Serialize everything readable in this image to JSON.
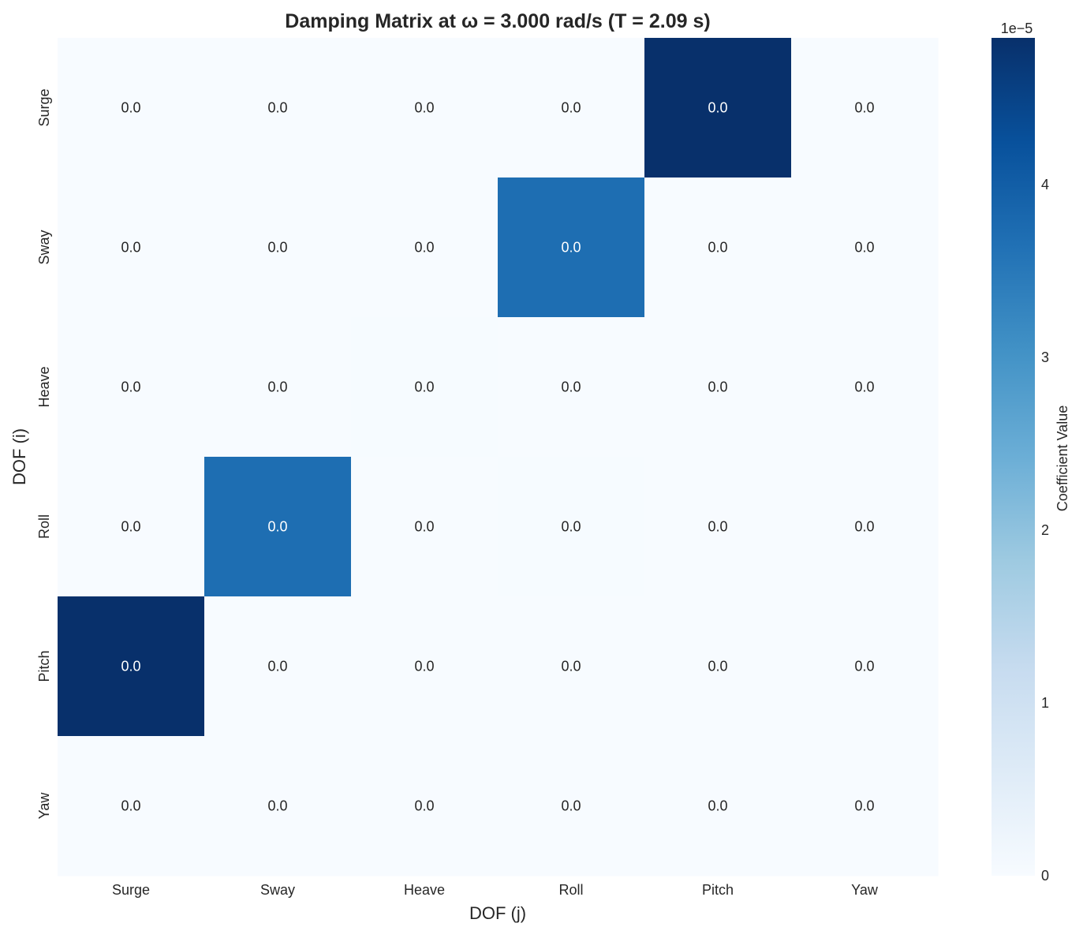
{
  "chart_data": {
    "type": "heatmap",
    "title": "Damping Matrix at ω = 3.000 rad/s (T = 2.09 s)",
    "xlabel": "DOF (j)",
    "ylabel": "DOF (i)",
    "x_categories": [
      "Surge",
      "Sway",
      "Heave",
      "Roll",
      "Pitch",
      "Yaw"
    ],
    "y_categories": [
      "Surge",
      "Sway",
      "Heave",
      "Roll",
      "Pitch",
      "Yaw"
    ],
    "values": [
      [
        0,
        0,
        0,
        0,
        4.85e-05,
        0
      ],
      [
        0,
        0,
        0,
        3.7e-05,
        0,
        0
      ],
      [
        0,
        0,
        1.5e-07,
        0,
        0,
        0
      ],
      [
        0,
        3.7e-05,
        0,
        1.5e-07,
        0,
        0
      ],
      [
        4.85e-05,
        0,
        0,
        0,
        0,
        0
      ],
      [
        0,
        0,
        0,
        0,
        0,
        0
      ]
    ],
    "annotations": [
      [
        "0.0",
        "0.0",
        "0.0",
        "0.0",
        "0.0",
        "0.0"
      ],
      [
        "0.0",
        "0.0",
        "0.0",
        "0.0",
        "0.0",
        "0.0"
      ],
      [
        "0.0",
        "0.0",
        "0.0",
        "0.0",
        "0.0",
        "0.0"
      ],
      [
        "0.0",
        "0.0",
        "0.0",
        "0.0",
        "0.0",
        "0.0"
      ],
      [
        "0.0",
        "0.0",
        "0.0",
        "0.0",
        "0.0",
        "0.0"
      ],
      [
        "0.0",
        "0.0",
        "0.0",
        "0.0",
        "0.0",
        "0.0"
      ]
    ],
    "colormap": "Blues",
    "colorbar": {
      "label": "Coefficient Value",
      "range": [
        0,
        4.85e-05
      ],
      "ticks": [
        0,
        1e-05,
        2e-05,
        3e-05,
        4e-05
      ],
      "tick_labels": [
        "0",
        "1",
        "2",
        "3",
        "4"
      ],
      "offset_label": "1e−5"
    },
    "grid": false
  }
}
